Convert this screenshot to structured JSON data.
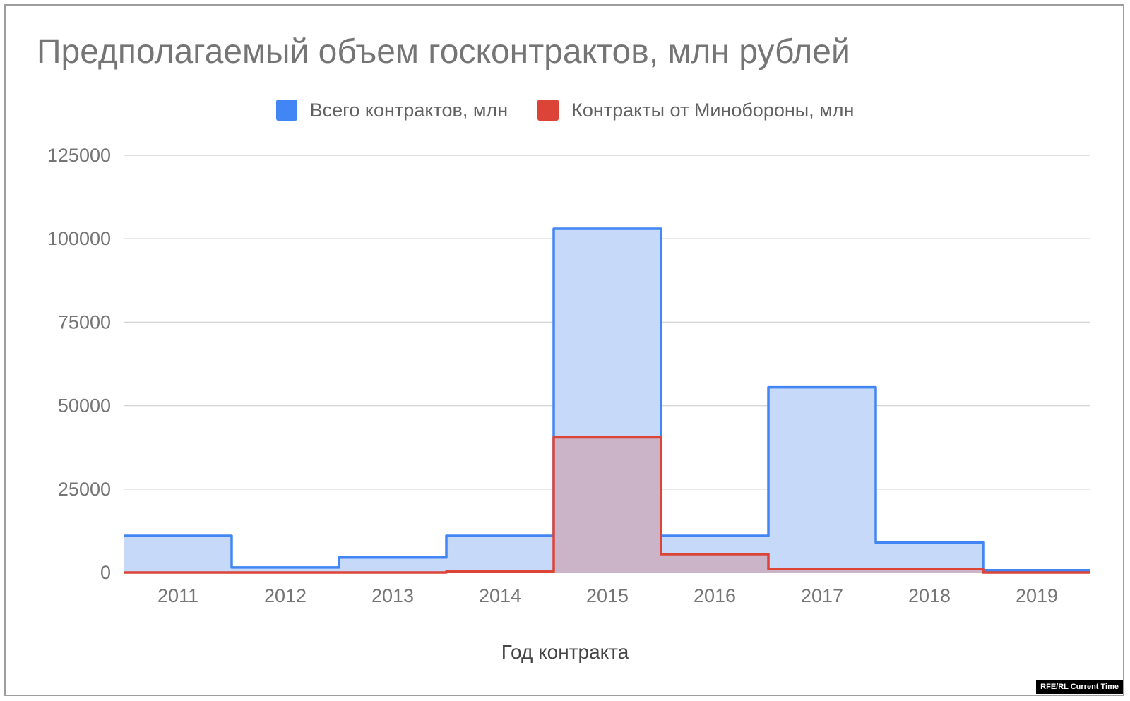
{
  "chart_data": {
    "type": "area",
    "step": true,
    "title": "Предполагаемый объем госконтрактов, млн рублей",
    "xlabel": "Год контракта",
    "ylabel": "",
    "categories": [
      "2011",
      "2012",
      "2013",
      "2014",
      "2015",
      "2016",
      "2017",
      "2018",
      "2019"
    ],
    "ylim": [
      0,
      125000
    ],
    "yticks": [
      "0",
      "25000",
      "50000",
      "75000",
      "100000",
      "125000"
    ],
    "grid": true,
    "legend_position": "top-center",
    "series": [
      {
        "name": "Всего контрактов, млн",
        "color": "#4285f4",
        "fill": "#c6d9f8",
        "values": [
          11000,
          1500,
          4500,
          11000,
          103000,
          11000,
          55500,
          9000,
          700
        ]
      },
      {
        "name": "Контракты от Минобороны, млн",
        "color": "#db4437",
        "fill": "#cbabbf",
        "values": [
          0,
          0,
          0,
          300,
          40500,
          5500,
          1000,
          1000,
          0
        ]
      }
    ]
  },
  "credit": "RFE/RL Current Time"
}
